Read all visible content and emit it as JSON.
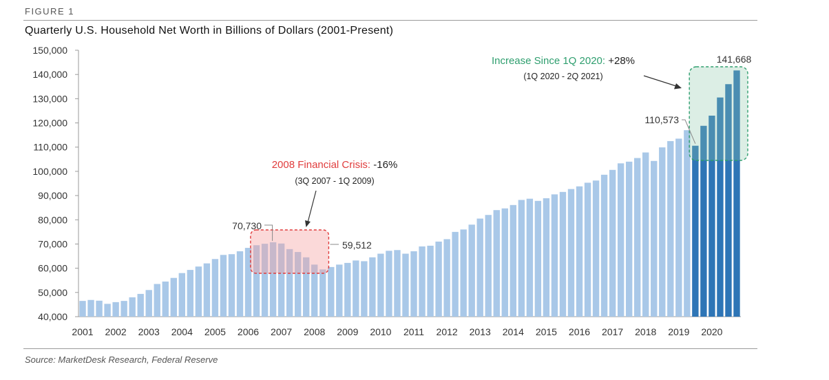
{
  "figure_label": "FIGURE 1",
  "source": "Source: MarketDesk Research, Federal Reserve",
  "colors": {
    "base_bar": "#a9c8e8",
    "highlight_bar": "#2e75b6",
    "crisis": "#e03c3c",
    "increase": "#2e9e6e"
  },
  "chart_data": {
    "type": "bar",
    "title": "Quarterly U.S. Household Net Worth in Billions of Dollars (2001-Present)",
    "xlabel": "",
    "ylabel": "",
    "ylim": [
      40000,
      150000
    ],
    "yticks": [
      40000,
      50000,
      60000,
      70000,
      80000,
      90000,
      100000,
      110000,
      120000,
      130000,
      140000,
      150000
    ],
    "ytick_labels": [
      "40,000",
      "50,000",
      "60,000",
      "70,000",
      "80,000",
      "90,000",
      "100,000",
      "110,000",
      "120,000",
      "130,000",
      "140,000",
      "150,000"
    ],
    "xtick_labels": [
      "2001",
      "2002",
      "2003",
      "2004",
      "2005",
      "2006",
      "2007",
      "2008",
      "2009",
      "2010",
      "2011",
      "2012",
      "2013",
      "2014",
      "2015",
      "2016",
      "2017",
      "2018",
      "2019",
      "2020"
    ],
    "grid": false,
    "values": [
      46500,
      46900,
      46600,
      45300,
      46000,
      46500,
      48000,
      49400,
      51000,
      53500,
      54500,
      56000,
      58000,
      59300,
      60700,
      62000,
      63800,
      65500,
      65800,
      67000,
      68400,
      69500,
      70100,
      70730,
      70200,
      67900,
      66700,
      64500,
      61500,
      59512,
      60500,
      61500,
      62200,
      63200,
      62900,
      64500,
      66000,
      67200,
      67500,
      66000,
      67000,
      69000,
      69300,
      71000,
      72000,
      75000,
      76000,
      78000,
      80500,
      82000,
      84000,
      84700,
      86100,
      88200,
      88700,
      87800,
      88900,
      90500,
      91500,
      92700,
      93800,
      95300,
      96200,
      98600,
      100600,
      103300,
      104000,
      105500,
      107800,
      104300,
      109900,
      112500,
      113500,
      117000,
      110573,
      118800,
      123000,
      130500,
      136000,
      141668
    ],
    "highlight_start_index": 74,
    "annotations": {
      "crisis_title": "2008 Financial Crisis:",
      "crisis_value": "-16%",
      "crisis_range": "(3Q 2007 - 1Q 2009)",
      "crisis_peak_label": "70,730",
      "crisis_trough_label": "59,512",
      "increase_title": "Increase Since 1Q 2020:",
      "increase_value": "+28%",
      "increase_range": "(1Q 2020 - 2Q 2021)",
      "increase_start_label": "110,573",
      "increase_end_label": "141,668"
    }
  }
}
